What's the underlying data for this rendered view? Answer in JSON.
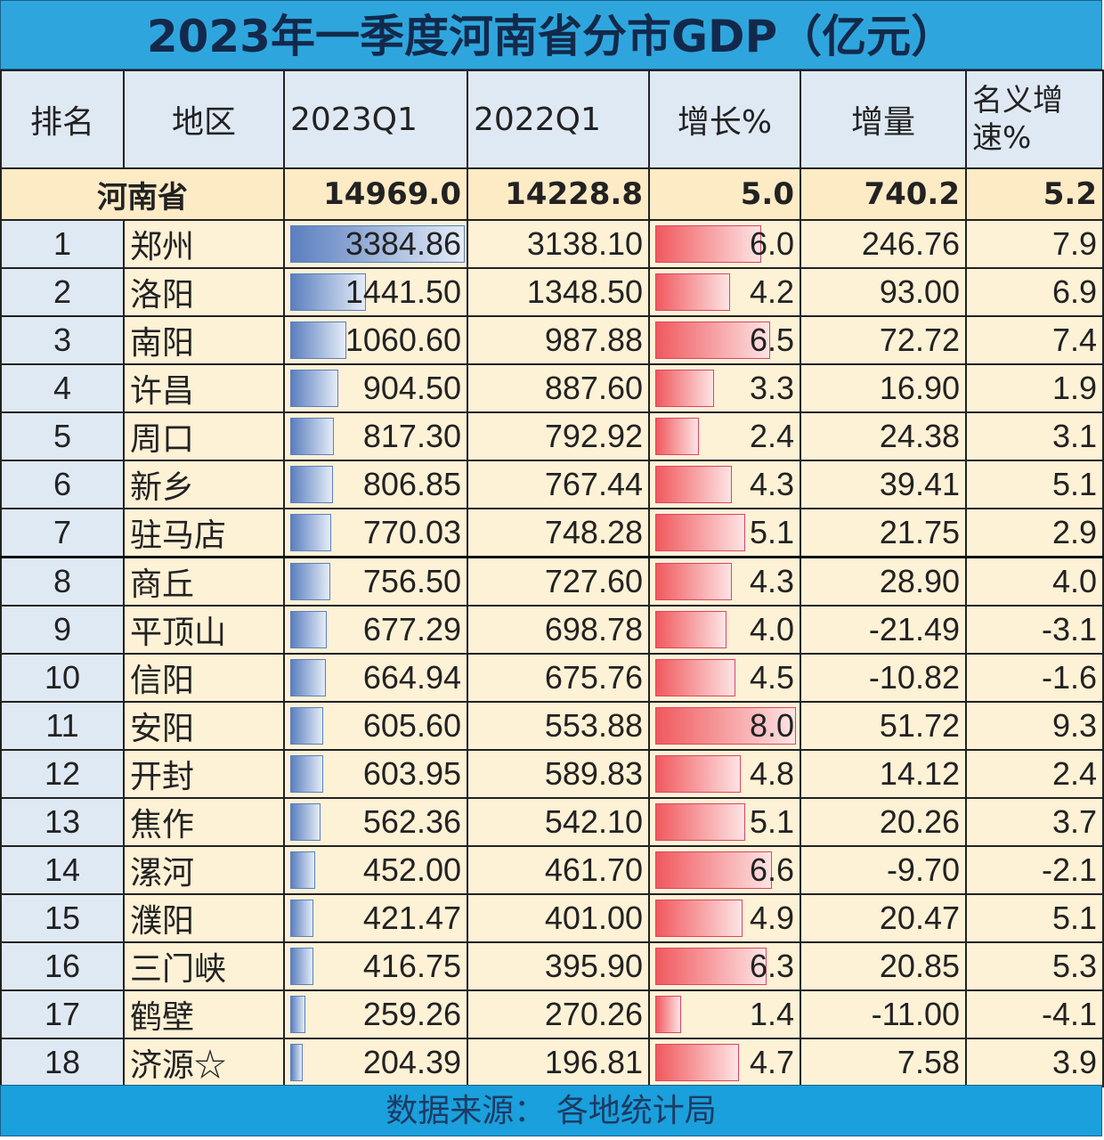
{
  "title": "2023年一季度河南省分市GDP（亿元）",
  "headers": [
    "排名",
    "地区",
    "2023Q1",
    "2022Q1",
    "增长%",
    "增量",
    "名义增速%"
  ],
  "province": {
    "name": "河南省",
    "q1_2023": "14969.0",
    "q1_2022": "14228.8",
    "growth": "5.0",
    "increment": "740.2",
    "nominal": "5.2"
  },
  "colors": {
    "title_bg": "#2ea6dd",
    "header_bg": "#dfe9f4",
    "cell_bg": "#fdf1d6",
    "bar_blue": "#5b7fbf",
    "bar_red": "#f0595e"
  },
  "chart_data": {
    "type": "table",
    "title": "2023年一季度河南省分市GDP（亿元）",
    "rows": [
      {
        "rank": "1",
        "city": "郑州",
        "q1_2023": "3384.86",
        "q1_2022": "3138.10",
        "growth": "6.0",
        "increment": "246.76",
        "nominal": "7.9"
      },
      {
        "rank": "2",
        "city": "洛阳",
        "q1_2023": "1441.50",
        "q1_2022": "1348.50",
        "growth": "4.2",
        "increment": "93.00",
        "nominal": "6.9"
      },
      {
        "rank": "3",
        "city": "南阳",
        "q1_2023": "1060.60",
        "q1_2022": "987.88",
        "growth": "6.5",
        "increment": "72.72",
        "nominal": "7.4"
      },
      {
        "rank": "4",
        "city": "许昌",
        "q1_2023": "904.50",
        "q1_2022": "887.60",
        "growth": "3.3",
        "increment": "16.90",
        "nominal": "1.9"
      },
      {
        "rank": "5",
        "city": "周口",
        "q1_2023": "817.30",
        "q1_2022": "792.92",
        "growth": "2.4",
        "increment": "24.38",
        "nominal": "3.1"
      },
      {
        "rank": "6",
        "city": "新乡",
        "q1_2023": "806.85",
        "q1_2022": "767.44",
        "growth": "4.3",
        "increment": "39.41",
        "nominal": "5.1"
      },
      {
        "rank": "7",
        "city": "驻马店",
        "q1_2023": "770.03",
        "q1_2022": "748.28",
        "growth": "5.1",
        "increment": "21.75",
        "nominal": "2.9"
      },
      {
        "rank": "8",
        "city": "商丘",
        "q1_2023": "756.50",
        "q1_2022": "727.60",
        "growth": "4.3",
        "increment": "28.90",
        "nominal": "4.0"
      },
      {
        "rank": "9",
        "city": "平顶山",
        "q1_2023": "677.29",
        "q1_2022": "698.78",
        "growth": "4.0",
        "increment": "-21.49",
        "nominal": "-3.1"
      },
      {
        "rank": "10",
        "city": "信阳",
        "q1_2023": "664.94",
        "q1_2022": "675.76",
        "growth": "4.5",
        "increment": "-10.82",
        "nominal": "-1.6"
      },
      {
        "rank": "11",
        "city": "安阳",
        "q1_2023": "605.60",
        "q1_2022": "553.88",
        "growth": "8.0",
        "increment": "51.72",
        "nominal": "9.3"
      },
      {
        "rank": "12",
        "city": "开封",
        "q1_2023": "603.95",
        "q1_2022": "589.83",
        "growth": "4.8",
        "increment": "14.12",
        "nominal": "2.4"
      },
      {
        "rank": "13",
        "city": "焦作",
        "q1_2023": "562.36",
        "q1_2022": "542.10",
        "growth": "5.1",
        "increment": "20.26",
        "nominal": "3.7"
      },
      {
        "rank": "14",
        "city": "漯河",
        "q1_2023": "452.00",
        "q1_2022": "461.70",
        "growth": "6.6",
        "increment": "-9.70",
        "nominal": "-2.1"
      },
      {
        "rank": "15",
        "city": "濮阳",
        "q1_2023": "421.47",
        "q1_2022": "401.00",
        "growth": "4.9",
        "increment": "20.47",
        "nominal": "5.1"
      },
      {
        "rank": "16",
        "city": "三门峡",
        "q1_2023": "416.75",
        "q1_2022": "395.90",
        "growth": "6.3",
        "increment": "20.85",
        "nominal": "5.3"
      },
      {
        "rank": "17",
        "city": "鹤壁",
        "q1_2023": "259.26",
        "q1_2022": "270.26",
        "growth": "1.4",
        "increment": "-11.00",
        "nominal": "-4.1"
      },
      {
        "rank": "18",
        "city": "济源☆",
        "q1_2023": "204.39",
        "q1_2022": "196.81",
        "growth": "4.7",
        "increment": "7.58",
        "nominal": "3.9"
      }
    ]
  },
  "footer": "数据来源：  各地统计局"
}
